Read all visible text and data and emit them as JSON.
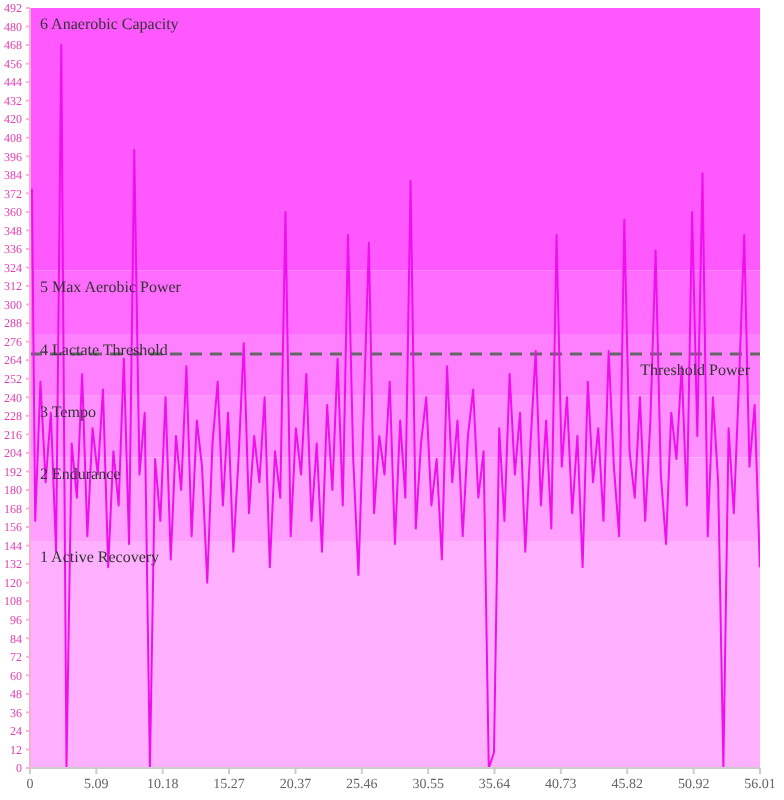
{
  "chart_data": {
    "type": "line",
    "x": [
      0.15,
      0.4,
      0.8,
      1.2,
      1.6,
      2,
      2.4,
      2.8,
      3.2,
      3.6,
      4,
      4.4,
      4.8,
      5.2,
      5.6,
      6,
      6.4,
      6.8,
      7.2,
      7.6,
      8,
      8.4,
      8.8,
      9.2,
      9.6,
      10,
      10.4,
      10.8,
      11.2,
      11.6,
      12,
      12.4,
      12.8,
      13.2,
      13.6,
      14,
      14.4,
      14.8,
      15.2,
      15.6,
      16,
      16.4,
      16.8,
      17.2,
      17.6,
      18,
      18.4,
      18.8,
      19.2,
      19.6,
      20,
      20.4,
      20.8,
      21.2,
      21.6,
      22,
      22.4,
      22.8,
      23.2,
      23.6,
      24,
      24.4,
      24.8,
      25.2,
      25.6,
      26,
      26.4,
      26.8,
      27.2,
      27.6,
      28,
      28.4,
      28.8,
      29.2,
      29.6,
      30,
      30.4,
      30.8,
      31.2,
      31.6,
      32,
      32.4,
      32.8,
      33.2,
      33.6,
      34,
      34.4,
      34.8,
      35.2,
      35.6,
      36,
      36.4,
      36.8,
      37.2,
      37.6,
      38,
      38.4,
      38.8,
      39.2,
      39.6,
      40,
      40.4,
      40.8,
      41.2,
      41.6,
      42,
      42.4,
      42.8,
      43.2,
      43.6,
      44,
      44.4,
      44.8,
      45.2,
      45.6,
      46,
      46.4,
      46.8,
      47.2,
      47.6,
      48,
      48.4,
      48.8,
      49.2,
      49.6,
      50,
      50.4,
      50.8,
      51.2,
      51.6,
      52,
      52.4,
      52.8,
      53.2,
      53.6,
      54,
      54.4,
      54.8,
      55.2,
      55.6,
      56
    ],
    "series": [
      {
        "color": "#ee11ee",
        "values": [
          375,
          160,
          250,
          185,
          230,
          140,
          468,
          0,
          210,
          175,
          255,
          150,
          220,
          190,
          245,
          130,
          205,
          170,
          265,
          145,
          400,
          190,
          230,
          0,
          200,
          160,
          240,
          135,
          215,
          180,
          260,
          150,
          225,
          195,
          120,
          210,
          250,
          170,
          230,
          140,
          200,
          275,
          165,
          215,
          185,
          240,
          130,
          205,
          175,
          360,
          150,
          220,
          190,
          255,
          160,
          210,
          140,
          235,
          180,
          265,
          170,
          345,
          200,
          125,
          230,
          340,
          165,
          215,
          190,
          250,
          145,
          225,
          175,
          380,
          155,
          210,
          240,
          170,
          200,
          135,
          260,
          185,
          225,
          150,
          215,
          245,
          175,
          205,
          0,
          10,
          220,
          160,
          255,
          190,
          230,
          140,
          210,
          270,
          170,
          225,
          155,
          345,
          195,
          240,
          165,
          215,
          130,
          250,
          185,
          220,
          160,
          270,
          195,
          150,
          355,
          205,
          175,
          240,
          160,
          225,
          335,
          190,
          145,
          230,
          200,
          260,
          170,
          360,
          215,
          385,
          150,
          240,
          185,
          0,
          220,
          165,
          250,
          345,
          195,
          235,
          130
        ]
      }
    ],
    "xlim": [
      0,
      56.01
    ],
    "xticks": [
      0,
      {
        "value": 5.09,
        "label": "5.09"
      },
      {
        "value": 10.18,
        "label": "10.18"
      },
      {
        "value": 15.27,
        "label": "15.27"
      },
      {
        "value": 20.37,
        "label": "20.37"
      },
      {
        "value": 25.46,
        "label": "25.46"
      },
      {
        "value": 30.55,
        "label": "30.55"
      },
      {
        "value": 35.64,
        "label": "35.64"
      },
      {
        "value": 40.73,
        "label": "40.73"
      },
      {
        "value": 45.82,
        "label": "45.82"
      },
      {
        "value": 50.92,
        "label": "50.92"
      },
      {
        "value": 56.01,
        "label": "56.01"
      }
    ],
    "ylim": [
      0,
      492
    ],
    "yticks": [
      0,
      12,
      24,
      36,
      48,
      60,
      72,
      84,
      96,
      108,
      120,
      132,
      144,
      156,
      168,
      180,
      192,
      204,
      216,
      228,
      240,
      252,
      264,
      276,
      288,
      300,
      312,
      324,
      336,
      348,
      360,
      372,
      384,
      396,
      408,
      420,
      432,
      444,
      456,
      468,
      480,
      492
    ],
    "bands": [
      {
        "axis": "y",
        "from": 0,
        "to": 147,
        "label": "1 Active Recovery",
        "color": "#ffb0ff"
      },
      {
        "axis": "y",
        "from": 147,
        "to": 201,
        "label": "2 Endurance",
        "color": "#ffa0ff"
      },
      {
        "axis": "y",
        "from": 201,
        "to": 241,
        "label": "3 Tempo",
        "color": "#ff90ff"
      },
      {
        "axis": "y",
        "from": 241,
        "to": 281,
        "label": "4 Lactate Threshold",
        "color": "#ff80ff"
      },
      {
        "axis": "y",
        "from": 281,
        "to": 322,
        "label": "5 Max Aerobic Power",
        "color": "#ff6cff"
      },
      {
        "axis": "y",
        "from": 322,
        "to": 492,
        "label": "6 Anaerobic Capacity",
        "color": "#ff58ff"
      }
    ],
    "ref_lines": [
      {
        "axis": "y",
        "value": 268,
        "label": "Threshold Power",
        "color": "#666666",
        "line_style": "dashed"
      }
    ],
    "grid": false,
    "legend": false,
    "marker": "none",
    "line_style": "solid"
  }
}
